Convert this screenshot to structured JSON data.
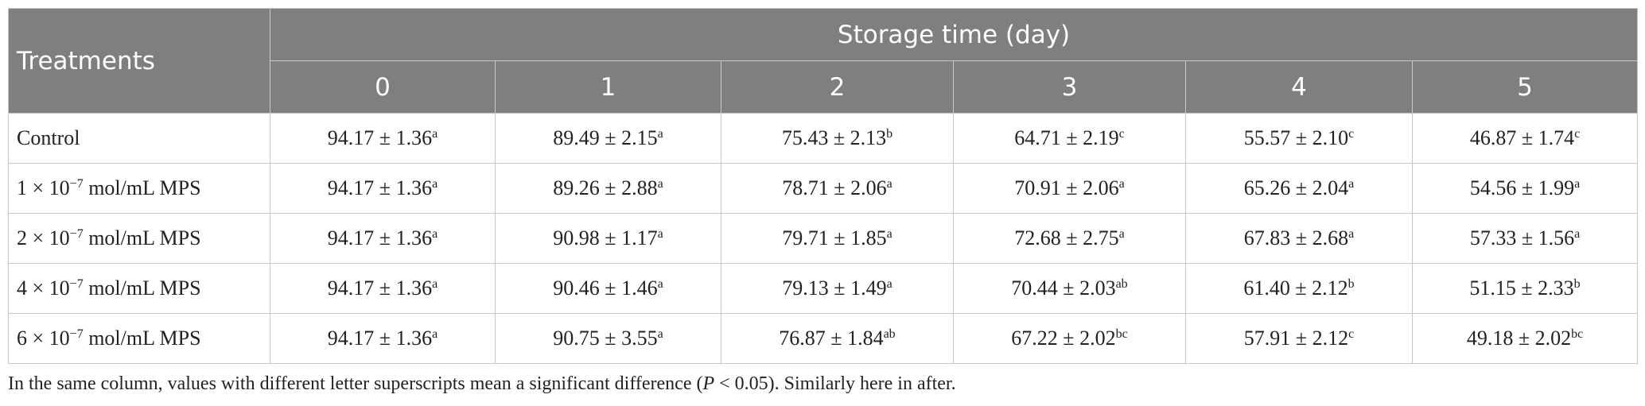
{
  "header": {
    "treatments": "Treatments",
    "group": "Storage time (day)",
    "days": [
      "0",
      "1",
      "2",
      "3",
      "4",
      "5"
    ]
  },
  "table": {
    "rows": [
      {
        "label": {
          "text": "Control"
        },
        "cells": [
          {
            "value": "94.17 ± 1.36",
            "sup": "a"
          },
          {
            "value": "89.49 ± 2.15",
            "sup": "a"
          },
          {
            "value": "75.43 ± 2.13",
            "sup": "b"
          },
          {
            "value": "64.71 ± 2.19",
            "sup": "c"
          },
          {
            "value": "55.57 ± 2.10",
            "sup": "c"
          },
          {
            "value": "46.87 ± 1.74",
            "sup": "c"
          }
        ]
      },
      {
        "label": {
          "pre": "1 × 10",
          "sup": "−7",
          "post": " mol/mL MPS"
        },
        "cells": [
          {
            "value": "94.17 ± 1.36",
            "sup": "a"
          },
          {
            "value": "89.26 ± 2.88",
            "sup": "a"
          },
          {
            "value": "78.71 ± 2.06",
            "sup": "a"
          },
          {
            "value": "70.91 ± 2.06",
            "sup": "a"
          },
          {
            "value": "65.26 ± 2.04",
            "sup": "a"
          },
          {
            "value": "54.56 ± 1.99",
            "sup": "a"
          }
        ]
      },
      {
        "label": {
          "pre": "2 × 10",
          "sup": "−7",
          "post": " mol/mL MPS"
        },
        "cells": [
          {
            "value": "94.17 ± 1.36",
            "sup": "a"
          },
          {
            "value": "90.98 ± 1.17",
            "sup": "a"
          },
          {
            "value": "79.71 ± 1.85",
            "sup": "a"
          },
          {
            "value": "72.68 ± 2.75",
            "sup": "a"
          },
          {
            "value": "67.83 ± 2.68",
            "sup": "a"
          },
          {
            "value": "57.33 ± 1.56",
            "sup": "a"
          }
        ]
      },
      {
        "label": {
          "pre": "4 × 10",
          "sup": "−7",
          "post": " mol/mL MPS"
        },
        "cells": [
          {
            "value": "94.17 ± 1.36",
            "sup": "a"
          },
          {
            "value": "90.46 ± 1.46",
            "sup": "a"
          },
          {
            "value": "79.13 ± 1.49",
            "sup": "a"
          },
          {
            "value": "70.44 ± 2.03",
            "sup": "ab"
          },
          {
            "value": "61.40 ± 2.12",
            "sup": "b"
          },
          {
            "value": "51.15 ± 2.33",
            "sup": "b"
          }
        ]
      },
      {
        "label": {
          "pre": "6 × 10",
          "sup": "−7",
          "post": " mol/mL MPS"
        },
        "cells": [
          {
            "value": "94.17 ± 1.36",
            "sup": "a"
          },
          {
            "value": "90.75 ± 3.55",
            "sup": "a"
          },
          {
            "value": "76.87 ± 1.84",
            "sup": "ab"
          },
          {
            "value": "67.22 ± 2.02",
            "sup": "bc"
          },
          {
            "value": "57.91 ± 2.12",
            "sup": "c"
          },
          {
            "value": "49.18 ± 2.02",
            "sup": "bc"
          }
        ]
      }
    ]
  },
  "footnote": {
    "pre": "In the same column, values with different letter superscripts mean a significant difference (",
    "italic": "P",
    "post": " < 0.05). Similarly here in after."
  }
}
